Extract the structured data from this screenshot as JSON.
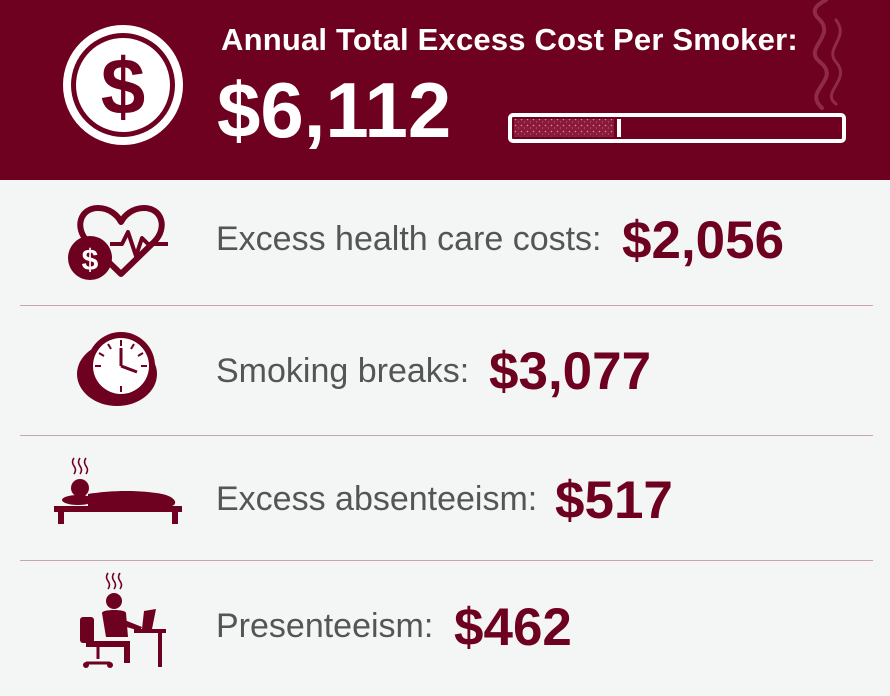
{
  "header": {
    "title": "Annual Total Excess Cost Per Smoker:",
    "total": "$6,112",
    "icons": [
      "dollar-coin-icon",
      "cigarette-icon",
      "smoke-icon"
    ]
  },
  "items": [
    {
      "label": "Excess health care costs:",
      "value": "$2,056",
      "icon": "heart-dollar-icon"
    },
    {
      "label": "Smoking breaks:",
      "value": "$3,077",
      "icon": "clock-icon"
    },
    {
      "label": "Excess absenteeism:",
      "value": "$517",
      "icon": "sick-in-bed-icon"
    },
    {
      "label": "Presenteeism:",
      "value": "$462",
      "icon": "worker-at-desk-icon"
    }
  ],
  "colors": {
    "primary": "#6e0020",
    "text": "#555555",
    "background": "#f4f5f5"
  }
}
